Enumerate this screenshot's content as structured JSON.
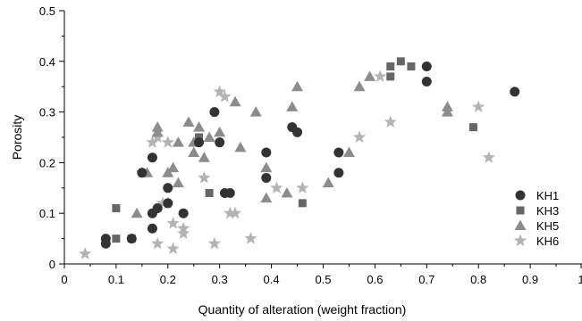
{
  "chart_data": {
    "type": "scatter",
    "xlabel": "Quantity of alteration (weight fraction)",
    "ylabel": "Porosity",
    "xlim": [
      0,
      1
    ],
    "ylim": [
      0,
      0.5
    ],
    "x_ticks": [
      0,
      0.1,
      0.2,
      0.3,
      0.4,
      0.5,
      0.6,
      0.7,
      0.8,
      0.9,
      1
    ],
    "x_tick_labels": [
      "0",
      "0.1",
      "0.2",
      "0.3",
      "0.4",
      "0.5",
      "0.6",
      "0.7",
      "0.8",
      "0.9",
      "1"
    ],
    "y_ticks": [
      0,
      0.1,
      0.2,
      0.3,
      0.4,
      0.5
    ],
    "y_tick_labels": [
      "0",
      "0.1",
      "0.2",
      "0.3",
      "0.4",
      "0.5"
    ],
    "grid": false,
    "legend_position": "right",
    "series": [
      {
        "name": "KH1",
        "marker": "circle",
        "color": "#333333",
        "points": [
          [
            0.08,
            0.05
          ],
          [
            0.08,
            0.04
          ],
          [
            0.13,
            0.05
          ],
          [
            0.15,
            0.18
          ],
          [
            0.17,
            0.21
          ],
          [
            0.17,
            0.1
          ],
          [
            0.17,
            0.07
          ],
          [
            0.18,
            0.11
          ],
          [
            0.2,
            0.15
          ],
          [
            0.2,
            0.12
          ],
          [
            0.23,
            0.1
          ],
          [
            0.26,
            0.24
          ],
          [
            0.29,
            0.3
          ],
          [
            0.3,
            0.24
          ],
          [
            0.31,
            0.14
          ],
          [
            0.32,
            0.14
          ],
          [
            0.39,
            0.22
          ],
          [
            0.39,
            0.17
          ],
          [
            0.44,
            0.27
          ],
          [
            0.45,
            0.26
          ],
          [
            0.53,
            0.22
          ],
          [
            0.53,
            0.18
          ],
          [
            0.7,
            0.39
          ],
          [
            0.7,
            0.36
          ],
          [
            0.87,
            0.34
          ]
        ]
      },
      {
        "name": "KH3",
        "marker": "square",
        "color": "#666666",
        "points": [
          [
            0.1,
            0.11
          ],
          [
            0.1,
            0.05
          ],
          [
            0.13,
            0.05
          ],
          [
            0.26,
            0.25
          ],
          [
            0.28,
            0.14
          ],
          [
            0.46,
            0.12
          ],
          [
            0.63,
            0.37
          ],
          [
            0.63,
            0.39
          ],
          [
            0.65,
            0.4
          ],
          [
            0.67,
            0.39
          ],
          [
            0.79,
            0.27
          ]
        ]
      },
      {
        "name": "KH5",
        "marker": "triangle",
        "color": "#8c8c8c",
        "points": [
          [
            0.14,
            0.1
          ],
          [
            0.16,
            0.18
          ],
          [
            0.18,
            0.26
          ],
          [
            0.18,
            0.27
          ],
          [
            0.2,
            0.18
          ],
          [
            0.21,
            0.19
          ],
          [
            0.22,
            0.24
          ],
          [
            0.22,
            0.16
          ],
          [
            0.24,
            0.28
          ],
          [
            0.25,
            0.22
          ],
          [
            0.25,
            0.24
          ],
          [
            0.26,
            0.27
          ],
          [
            0.27,
            0.21
          ],
          [
            0.28,
            0.25
          ],
          [
            0.3,
            0.26
          ],
          [
            0.33,
            0.32
          ],
          [
            0.34,
            0.23
          ],
          [
            0.37,
            0.3
          ],
          [
            0.39,
            0.19
          ],
          [
            0.39,
            0.13
          ],
          [
            0.43,
            0.14
          ],
          [
            0.44,
            0.31
          ],
          [
            0.45,
            0.35
          ],
          [
            0.51,
            0.16
          ],
          [
            0.55,
            0.22
          ],
          [
            0.57,
            0.35
          ],
          [
            0.59,
            0.37
          ],
          [
            0.74,
            0.3
          ],
          [
            0.74,
            0.31
          ]
        ]
      },
      {
        "name": "KH6",
        "marker": "star",
        "color": "#b3b3b3",
        "points": [
          [
            0.04,
            0.02
          ],
          [
            0.15,
            0.18
          ],
          [
            0.17,
            0.24
          ],
          [
            0.18,
            0.25
          ],
          [
            0.18,
            0.04
          ],
          [
            0.19,
            0.12
          ],
          [
            0.2,
            0.12
          ],
          [
            0.2,
            0.24
          ],
          [
            0.21,
            0.08
          ],
          [
            0.21,
            0.03
          ],
          [
            0.23,
            0.07
          ],
          [
            0.23,
            0.06
          ],
          [
            0.27,
            0.17
          ],
          [
            0.29,
            0.04
          ],
          [
            0.3,
            0.34
          ],
          [
            0.31,
            0.33
          ],
          [
            0.32,
            0.1
          ],
          [
            0.33,
            0.1
          ],
          [
            0.36,
            0.05
          ],
          [
            0.41,
            0.15
          ],
          [
            0.46,
            0.15
          ],
          [
            0.57,
            0.25
          ],
          [
            0.61,
            0.37
          ],
          [
            0.63,
            0.28
          ],
          [
            0.8,
            0.31
          ],
          [
            0.82,
            0.21
          ]
        ]
      }
    ]
  }
}
